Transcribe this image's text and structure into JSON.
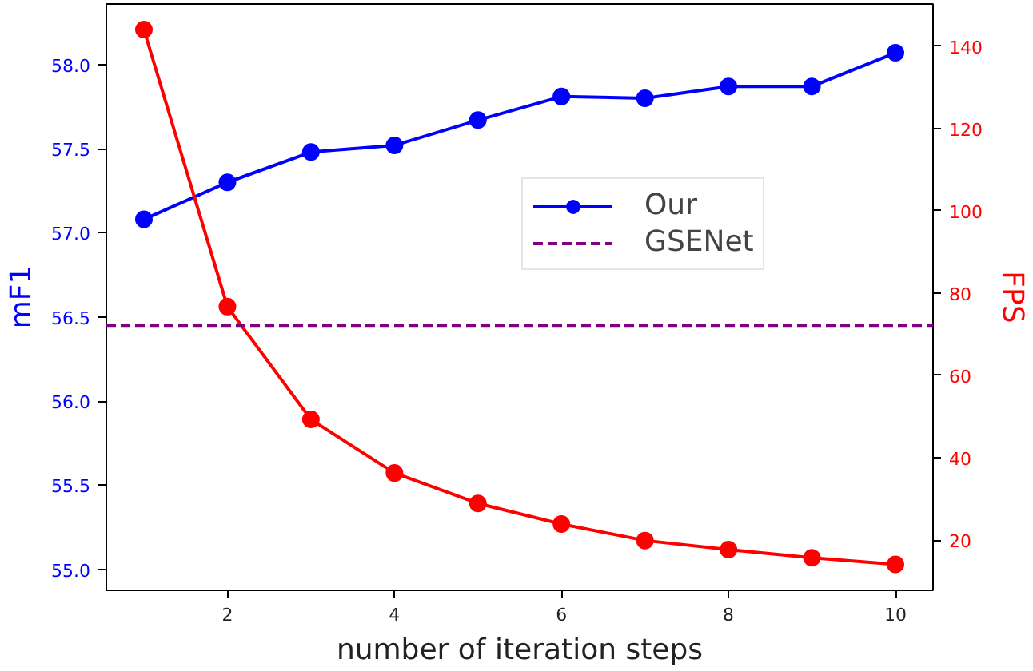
{
  "chart_data": {
    "type": "line",
    "xlabel": "number of iteration steps",
    "ylabel": "mF1",
    "y2label": "FPS",
    "x": [
      1,
      2,
      3,
      4,
      5,
      6,
      7,
      8,
      9,
      10
    ],
    "series": [
      {
        "name": "Our",
        "color": "#0000ff",
        "values": [
          57.08,
          57.3,
          57.48,
          57.52,
          57.67,
          57.81,
          57.8,
          57.87,
          57.87,
          58.07
        ]
      },
      {
        "color": "#ff0000",
        "axis": "y2",
        "values": [
          144,
          76.7,
          49.3,
          36.3,
          28.9,
          23.9,
          19.9,
          17.7,
          15.7,
          14.1
        ]
      }
    ],
    "ref_lines": [
      {
        "axis": "y",
        "value": 56.45,
        "label": "GSENet",
        "color": "#800080",
        "line_style": "dashed"
      }
    ],
    "xlim": [
      0.55,
      10.45
    ],
    "ylim": [
      54.875,
      58.36
    ],
    "y2lim": [
      7.8,
      150.2
    ],
    "xticks": [
      2,
      4,
      6,
      8,
      10
    ],
    "yticks": [
      {
        "value": 55,
        "label": "55.0"
      },
      55.5,
      {
        "value": 56,
        "label": "56.0"
      },
      56.5,
      {
        "value": 57,
        "label": "57.0"
      },
      57.5,
      {
        "value": 58,
        "label": "58.0"
      }
    ],
    "y2ticks": [
      20,
      40,
      60,
      80,
      100,
      120,
      140
    ],
    "marker": "circle",
    "line_style": "solid",
    "grid": false,
    "legend": "top right"
  }
}
